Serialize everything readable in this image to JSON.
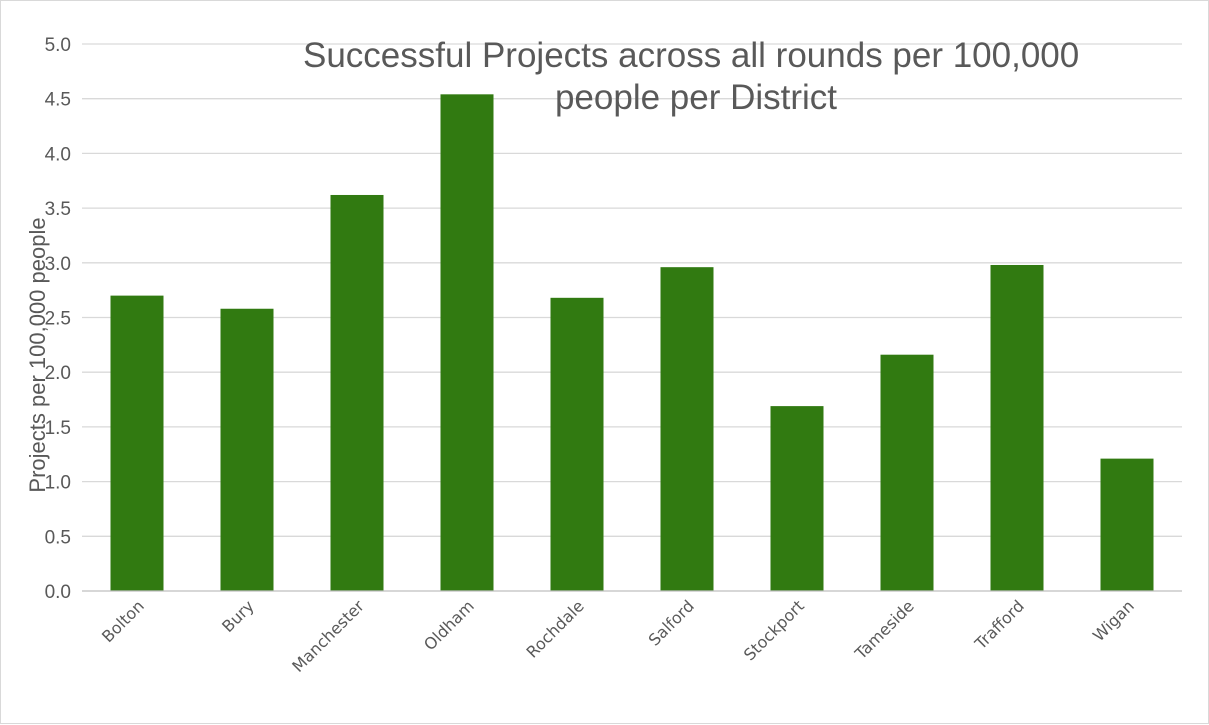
{
  "chart_data": {
    "type": "bar",
    "title_lines": [
      "Successful Projects across all rounds per 100,000",
      "people per District"
    ],
    "xlabel": "",
    "ylabel": "Projects per 100,000 people",
    "ylim": [
      0,
      5
    ],
    "y_ticks": [
      "0.0",
      "0.5",
      "1.0",
      "1.5",
      "2.0",
      "2.5",
      "3.0",
      "3.5",
      "4.0",
      "4.5",
      "5.0"
    ],
    "categories": [
      "Bolton",
      "Bury",
      "Manchester",
      "Oldham",
      "Rochdale",
      "Salford",
      "Stockport",
      "Tameside",
      "Trafford",
      "Wigan"
    ],
    "values": [
      2.7,
      2.58,
      3.62,
      4.54,
      2.68,
      2.96,
      1.69,
      2.16,
      2.98,
      1.21
    ],
    "bar_color": "#317a11",
    "grid": true,
    "legend": "none"
  }
}
